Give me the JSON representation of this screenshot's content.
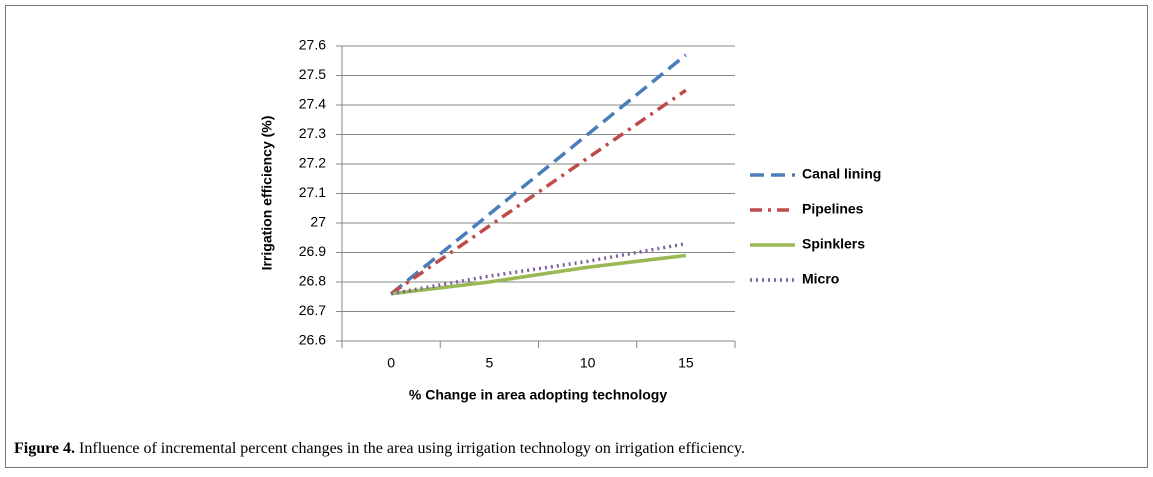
{
  "chart_data": {
    "type": "line",
    "x_label": "% Change in area adopting technology",
    "y_label": "Irrigation efficiency (%)",
    "categories": [
      "0",
      "5",
      "10",
      "15"
    ],
    "series": [
      {
        "name": "Canal lining",
        "color": "#4a7ebb",
        "dash": "14 7",
        "values": [
          26.76,
          27.03,
          27.3,
          27.57
        ]
      },
      {
        "name": "Pipelines",
        "color": "#be4b48",
        "dash": "12 6 3 6",
        "values": [
          26.76,
          26.99,
          27.22,
          27.45
        ]
      },
      {
        "name": "Spinklers",
        "color": "#98b954",
        "dash": "none",
        "values": [
          26.76,
          26.8,
          26.85,
          26.89
        ]
      },
      {
        "name": "Micro",
        "color": "#7d60a0",
        "dash": "2 4",
        "values": [
          26.76,
          26.82,
          26.87,
          26.93
        ]
      }
    ],
    "ylim": [
      26.6,
      27.6
    ],
    "yticks": [
      26.6,
      26.7,
      26.8,
      26.9,
      27,
      27.1,
      27.2,
      27.3,
      27.4,
      27.5,
      27.6
    ],
    "grid": true,
    "legend": "right"
  },
  "caption": {
    "label": "Figure 4.",
    "text": "Influence of incremental percent changes in the area using irrigation technology on irrigation efficiency."
  }
}
